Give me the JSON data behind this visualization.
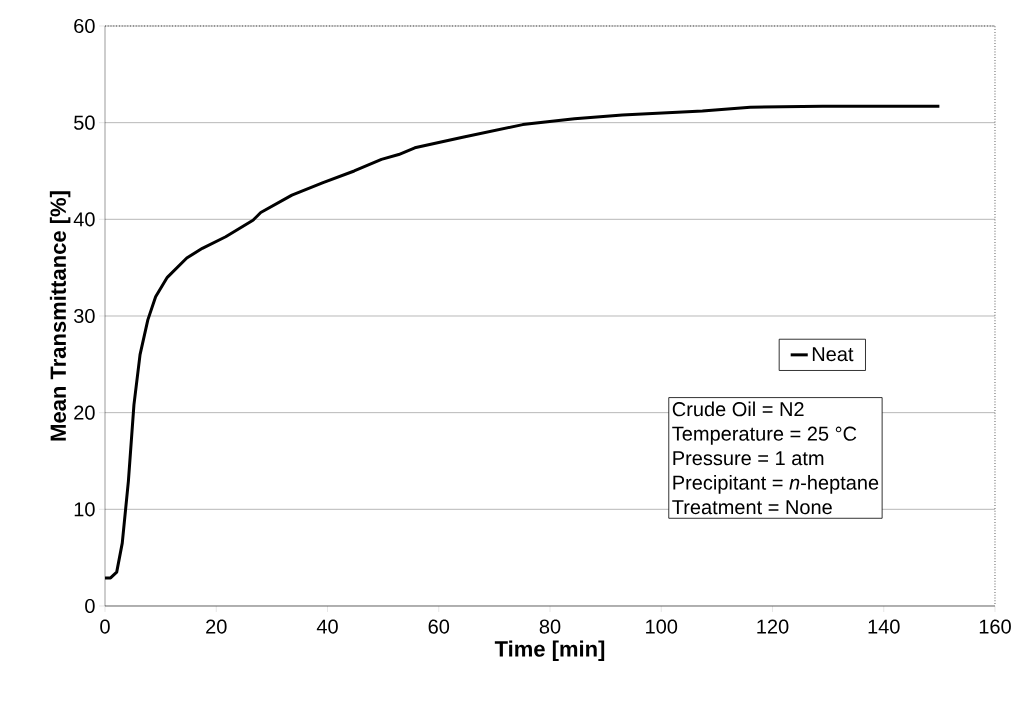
{
  "chart_data": {
    "type": "line",
    "xlabel": "Time [min]",
    "ylabel": "Mean Transmittance [%]",
    "xlim": [
      0,
      160
    ],
    "ylim": [
      0,
      60
    ],
    "xticks": [
      0,
      20,
      40,
      60,
      80,
      100,
      120,
      140,
      160
    ],
    "yticks": [
      0,
      10,
      20,
      30,
      40,
      50,
      60
    ],
    "grid": "y",
    "legend": "right",
    "marker": "none",
    "line_style": "solid",
    "series": [
      {
        "name": "Neat",
        "color": "#000000",
        "x": [
          0,
          1,
          2.1,
          3.1,
          4.2,
          5.2,
          6.3,
          7.7,
          9.1,
          11.2,
          14.7,
          17.5,
          21.7,
          26.6,
          28,
          33.6,
          39.2,
          44.8,
          49.7,
          52.8,
          55.7,
          64.3,
          75.1,
          84.4,
          93,
          107.4,
          116,
          129,
          150
        ],
        "values": [
          2.9,
          2.9,
          3.5,
          6.5,
          12.9,
          20.8,
          26,
          29.6,
          32,
          34,
          36,
          37,
          38.2,
          39.9,
          40.7,
          42.5,
          43.8,
          45,
          46.2,
          46.7,
          47.4,
          48.5,
          49.8,
          50.4,
          50.8,
          51.2,
          51.6,
          51.7,
          51.7
        ]
      }
    ],
    "annotations": [
      "Crude Oil = N2",
      "Temperature = 25 °C",
      "Pressure = 1 atm",
      "Precipitant = *n*-heptane",
      "Treatment = None"
    ]
  }
}
